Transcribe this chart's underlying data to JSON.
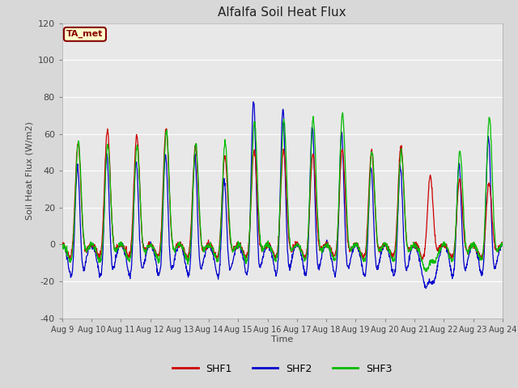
{
  "title": "Alfalfa Soil Heat Flux",
  "ylabel": "Soil Heat Flux (W/m2)",
  "xlabel": "Time",
  "ylim": [
    -40,
    120
  ],
  "xlim": [
    0,
    15
  ],
  "fig_bg": "#d8d8d8",
  "plot_bg": "#e8e8e8",
  "colors": {
    "SHF1": "#cc0000",
    "SHF2": "#0000cc",
    "SHF3": "#00bb00"
  },
  "annotation_text": "TA_met",
  "annotation_bg": "#ffffcc",
  "annotation_border": "#880000",
  "xtick_labels": [
    "Aug 9",
    "Aug 10",
    "Aug 11",
    "Aug 12",
    "Aug 13",
    "Aug 14",
    "Aug 15",
    "Aug 16",
    "Aug 17",
    "Aug 18",
    "Aug 19",
    "Aug 20",
    "Aug 21",
    "Aug 22",
    "Aug 23",
    "Aug 24"
  ],
  "ytick_labels": [
    -40,
    -20,
    0,
    20,
    40,
    60,
    80,
    100,
    120
  ],
  "grid_color": "#ffffff",
  "legend_entries": [
    "SHF1",
    "SHF2",
    "SHF3"
  ]
}
